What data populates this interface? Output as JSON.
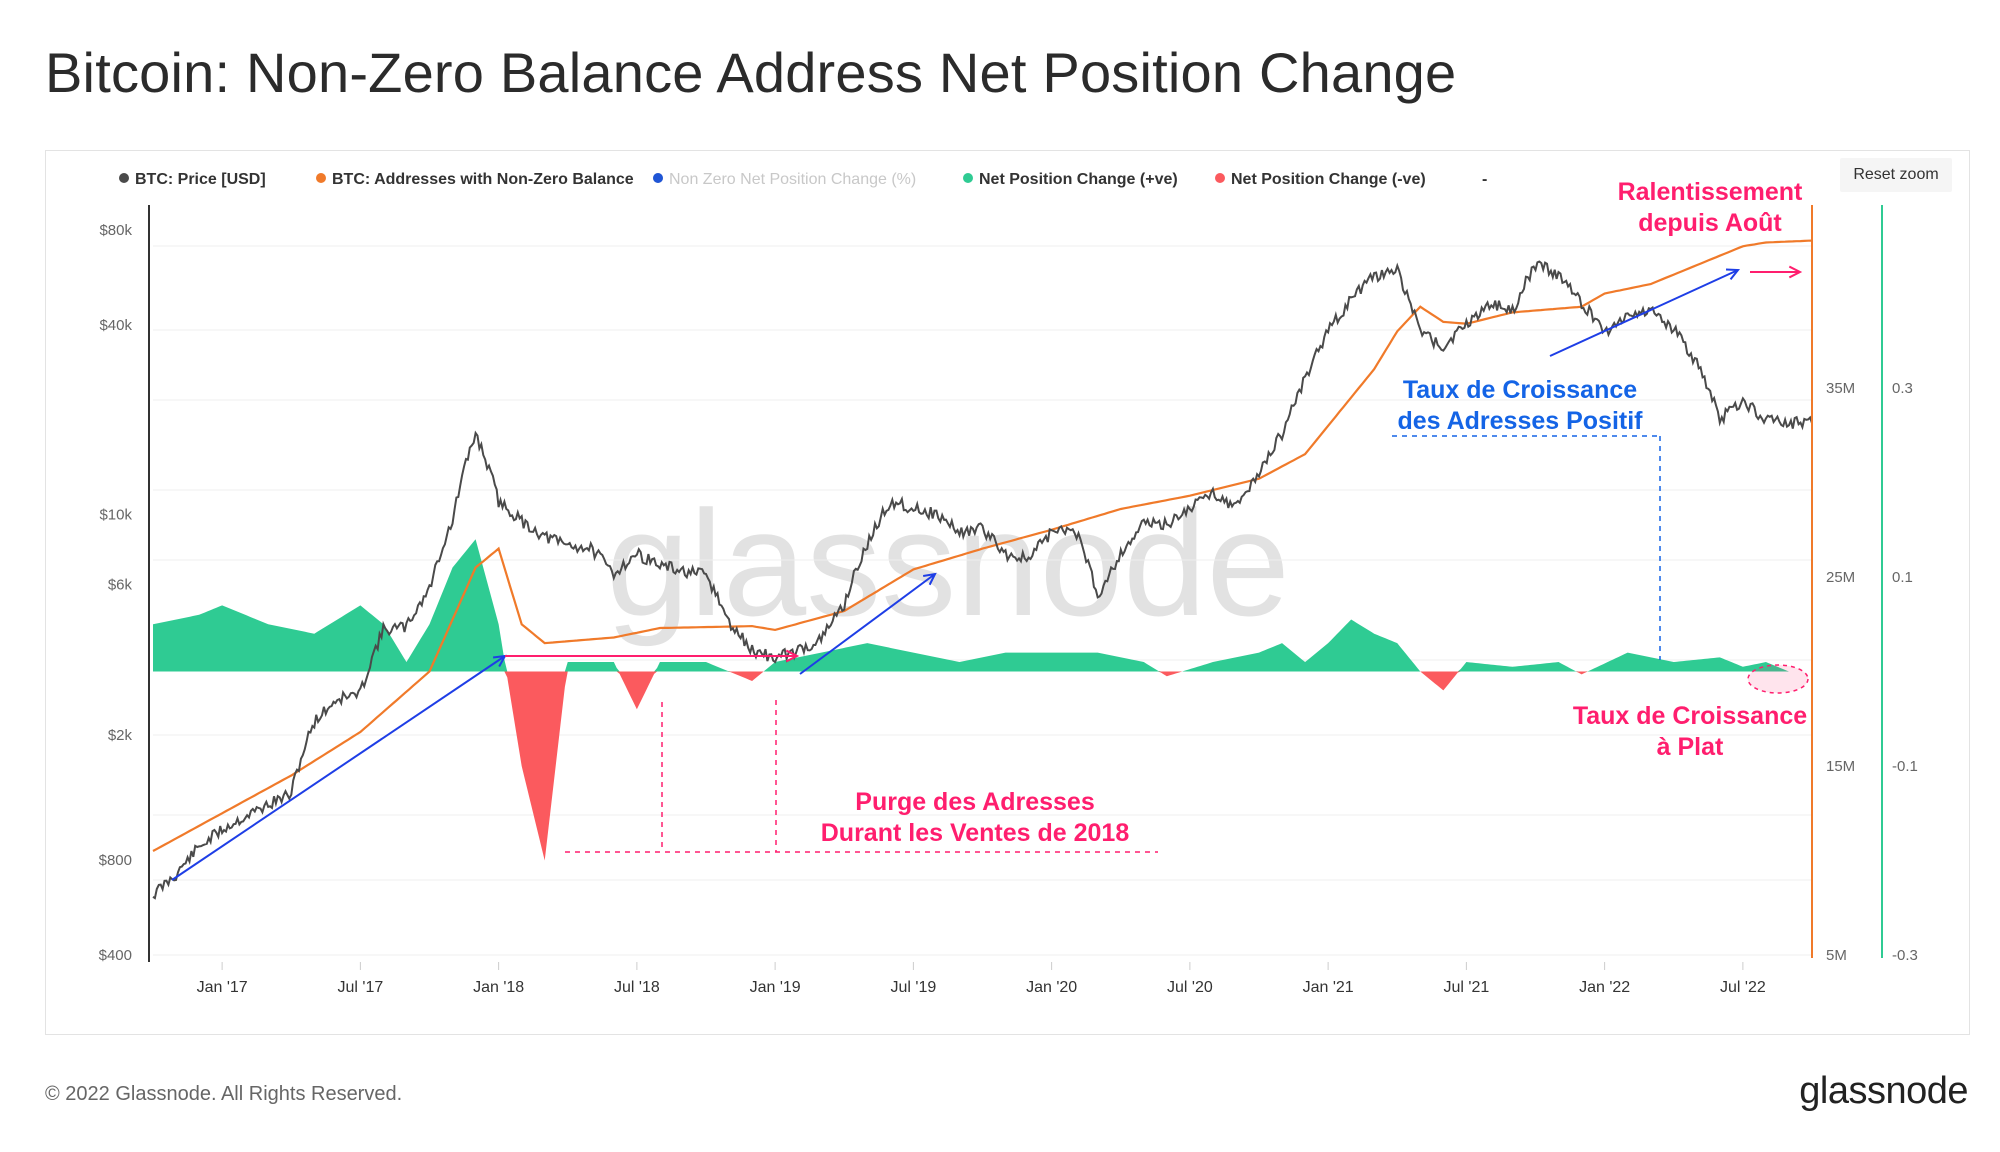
{
  "title": "Bitcoin: Non-Zero Balance Address Net Position Change",
  "reset_zoom_label": "Reset zoom",
  "footer": {
    "copyright": "© 2022 Glassnode. All Rights Reserved.",
    "logo": "glassnode"
  },
  "watermark": "glassnode",
  "colors": {
    "price": "#4a4a4a",
    "addresses": "#f07a2a",
    "nonzero_pct": "#1f55d6",
    "positive": "#2fcb93",
    "negative": "#fb5a5e",
    "annotation_blue": "#1464e6",
    "annotation_pink": "#ff1e6e",
    "arrow_blue": "#1e3ee6"
  },
  "chart_data": {
    "type": "line",
    "legend": [
      {
        "name": "BTC: Price [USD]",
        "color": "#4a4a4a",
        "enabled": true
      },
      {
        "name": "BTC: Addresses with Non-Zero Balance",
        "color": "#f07a2a",
        "enabled": true
      },
      {
        "name": "Non Zero Net Position Change (%)",
        "color": "#1f55d6",
        "enabled": false
      },
      {
        "name": "Net Position Change (+ve)",
        "color": "#2fcb93",
        "enabled": true
      },
      {
        "name": "Net Position Change (-ve)",
        "color": "#fb5a5e",
        "enabled": true
      },
      {
        "name": "-",
        "color": "",
        "enabled": true
      }
    ],
    "x_ticks": [
      "Jan '17",
      "Jul '17",
      "Jan '18",
      "Jul '18",
      "Jan '19",
      "Jul '19",
      "Jan '20",
      "Jul '20",
      "Jan '21",
      "Jul '21",
      "Jan '22",
      "Jul '22"
    ],
    "x_range": [
      "2016-10",
      "2022-10"
    ],
    "y_price_ticks": [
      "$80k",
      "$40k",
      "$10k",
      "$6k",
      "$2k",
      "$800",
      "$400"
    ],
    "y_price_scale": "log",
    "y_addresses_ticks": [
      "35M",
      "25M",
      "15M",
      "5M"
    ],
    "y_pct_ticks": [
      "0.3",
      "0.1",
      "-0.1",
      "-0.3"
    ],
    "series": [
      {
        "name": "BTC: Price [USD]",
        "points": [
          [
            "2016-10",
            620
          ],
          [
            "2016-11",
            720
          ],
          [
            "2016-12",
            880
          ],
          [
            "2017-01",
            1000
          ],
          [
            "2017-02",
            1100
          ],
          [
            "2017-03",
            1200
          ],
          [
            "2017-04",
            1300
          ],
          [
            "2017-05",
            2200
          ],
          [
            "2017-06",
            2600
          ],
          [
            "2017-07",
            2700
          ],
          [
            "2017-08",
            4300
          ],
          [
            "2017-09",
            4400
          ],
          [
            "2017-10",
            5800
          ],
          [
            "2017-11",
            9500
          ],
          [
            "2017-12",
            18000
          ],
          [
            "2018-01",
            11000
          ],
          [
            "2018-02",
            9500
          ],
          [
            "2018-03",
            8500
          ],
          [
            "2018-04",
            8000
          ],
          [
            "2018-05",
            7800
          ],
          [
            "2018-06",
            6500
          ],
          [
            "2018-07",
            7500
          ],
          [
            "2018-08",
            6900
          ],
          [
            "2018-09",
            6600
          ],
          [
            "2018-10",
            6400
          ],
          [
            "2018-11",
            4500
          ],
          [
            "2018-12",
            3700
          ],
          [
            "2019-01",
            3500
          ],
          [
            "2019-02",
            3700
          ],
          [
            "2019-03",
            4000
          ],
          [
            "2019-04",
            5200
          ],
          [
            "2019-05",
            8000
          ],
          [
            "2019-06",
            11000
          ],
          [
            "2019-07",
            10500
          ],
          [
            "2019-08",
            10000
          ],
          [
            "2019-09",
            8800
          ],
          [
            "2019-10",
            9000
          ],
          [
            "2019-11",
            7500
          ],
          [
            "2019-12",
            7200
          ],
          [
            "2020-01",
            8800
          ],
          [
            "2020-02",
            9000
          ],
          [
            "2020-03",
            5500
          ],
          [
            "2020-04",
            7500
          ],
          [
            "2020-05",
            9400
          ],
          [
            "2020-06",
            9300
          ],
          [
            "2020-07",
            10500
          ],
          [
            "2020-08",
            11800
          ],
          [
            "2020-09",
            10500
          ],
          [
            "2020-10",
            13500
          ],
          [
            "2020-11",
            18000
          ],
          [
            "2020-12",
            27000
          ],
          [
            "2021-01",
            38000
          ],
          [
            "2021-02",
            48000
          ],
          [
            "2021-03",
            57000
          ],
          [
            "2021-04",
            59000
          ],
          [
            "2021-05",
            38000
          ],
          [
            "2021-06",
            34000
          ],
          [
            "2021-07",
            40000
          ],
          [
            "2021-08",
            47000
          ],
          [
            "2021-09",
            44000
          ],
          [
            "2021-10",
            62000
          ],
          [
            "2021-11",
            58000
          ],
          [
            "2021-12",
            47000
          ],
          [
            "2022-01",
            38000
          ],
          [
            "2022-02",
            43000
          ],
          [
            "2022-03",
            45000
          ],
          [
            "2022-04",
            38500
          ],
          [
            "2022-05",
            30000
          ],
          [
            "2022-06",
            20000
          ],
          [
            "2022-07",
            23000
          ],
          [
            "2022-08",
            20000
          ],
          [
            "2022-09",
            19500
          ],
          [
            "2022-10",
            19500
          ]
        ]
      },
      {
        "name": "BTC: Addresses with Non-Zero Balance",
        "points": [
          [
            "2016-10",
            10.5
          ],
          [
            "2017-01",
            12.5
          ],
          [
            "2017-04",
            14.5
          ],
          [
            "2017-07",
            16.8
          ],
          [
            "2017-10",
            20.0
          ],
          [
            "2017-12",
            25.5
          ],
          [
            "2018-01",
            26.5
          ],
          [
            "2018-02",
            22.5
          ],
          [
            "2018-03",
            21.5
          ],
          [
            "2018-06",
            21.8
          ],
          [
            "2018-08",
            22.3
          ],
          [
            "2018-12",
            22.4
          ],
          [
            "2019-01",
            22.2
          ],
          [
            "2019-04",
            23.2
          ],
          [
            "2019-07",
            25.4
          ],
          [
            "2019-10",
            26.5
          ],
          [
            "2020-01",
            27.5
          ],
          [
            "2020-04",
            28.6
          ],
          [
            "2020-07",
            29.3
          ],
          [
            "2020-10",
            30.2
          ],
          [
            "2020-12",
            31.5
          ],
          [
            "2021-01",
            33.0
          ],
          [
            "2021-03",
            36.0
          ],
          [
            "2021-04",
            38.0
          ],
          [
            "2021-05",
            39.3
          ],
          [
            "2021-06",
            38.5
          ],
          [
            "2021-07",
            38.4
          ],
          [
            "2021-09",
            39.0
          ],
          [
            "2021-12",
            39.3
          ],
          [
            "2022-01",
            40.0
          ],
          [
            "2022-03",
            40.5
          ],
          [
            "2022-05",
            41.5
          ],
          [
            "2022-07",
            42.5
          ],
          [
            "2022-08",
            42.7
          ],
          [
            "2022-10",
            42.8
          ]
        ]
      },
      {
        "name": "Net Position Change (+ve / -ve)",
        "points": [
          [
            "2016-10",
            0.05
          ],
          [
            "2016-12",
            0.06
          ],
          [
            "2017-01",
            0.07
          ],
          [
            "2017-03",
            0.05
          ],
          [
            "2017-05",
            0.04
          ],
          [
            "2017-07",
            0.07
          ],
          [
            "2017-08",
            0.05
          ],
          [
            "2017-09",
            0.01
          ],
          [
            "2017-10",
            0.05
          ],
          [
            "2017-11",
            0.11
          ],
          [
            "2017-12",
            0.14
          ],
          [
            "2018-01",
            0.05
          ],
          [
            "2018-02",
            -0.1
          ],
          [
            "2018-03",
            -0.2
          ],
          [
            "2018-04",
            0.01
          ],
          [
            "2018-06",
            0.01
          ],
          [
            "2018-07",
            -0.04
          ],
          [
            "2018-08",
            0.01
          ],
          [
            "2018-10",
            0.01
          ],
          [
            "2018-12",
            -0.01
          ],
          [
            "2019-01",
            0.01
          ],
          [
            "2019-03",
            0.02
          ],
          [
            "2019-05",
            0.03
          ],
          [
            "2019-07",
            0.02
          ],
          [
            "2019-09",
            0.01
          ],
          [
            "2019-11",
            0.02
          ],
          [
            "2020-01",
            0.02
          ],
          [
            "2020-03",
            0.02
          ],
          [
            "2020-05",
            0.01
          ],
          [
            "2020-06",
            -0.005
          ],
          [
            "2020-08",
            0.01
          ],
          [
            "2020-10",
            0.02
          ],
          [
            "2020-11",
            0.03
          ],
          [
            "2020-12",
            0.01
          ],
          [
            "2021-01",
            0.03
          ],
          [
            "2021-02",
            0.055
          ],
          [
            "2021-03",
            0.04
          ],
          [
            "2021-04",
            0.03
          ],
          [
            "2021-05",
            0.0
          ],
          [
            "2021-06",
            -0.02
          ],
          [
            "2021-07",
            0.01
          ],
          [
            "2021-09",
            0.005
          ],
          [
            "2021-11",
            0.01
          ],
          [
            "2021-12",
            -0.003
          ],
          [
            "2022-02",
            0.02
          ],
          [
            "2022-04",
            0.01
          ],
          [
            "2022-06",
            0.015
          ],
          [
            "2022-07",
            0.005
          ],
          [
            "2022-08",
            0.01
          ],
          [
            "2022-09",
            0.0
          ],
          [
            "2022-10",
            0.0
          ]
        ]
      }
    ],
    "annotations": [
      {
        "text": [
          "Ralentissement",
          "depuis Août"
        ],
        "color": "#ff1e6e"
      },
      {
        "text": [
          "Taux de Croissance",
          "des Adresses Positif"
        ],
        "color": "#1464e6"
      },
      {
        "text": [
          "Taux de Croissance",
          "à Plat"
        ],
        "color": "#ff1e6e"
      },
      {
        "text": [
          "Purge des Adresses",
          "Durant les Ventes de 2018"
        ],
        "color": "#ff1e6e"
      }
    ]
  }
}
